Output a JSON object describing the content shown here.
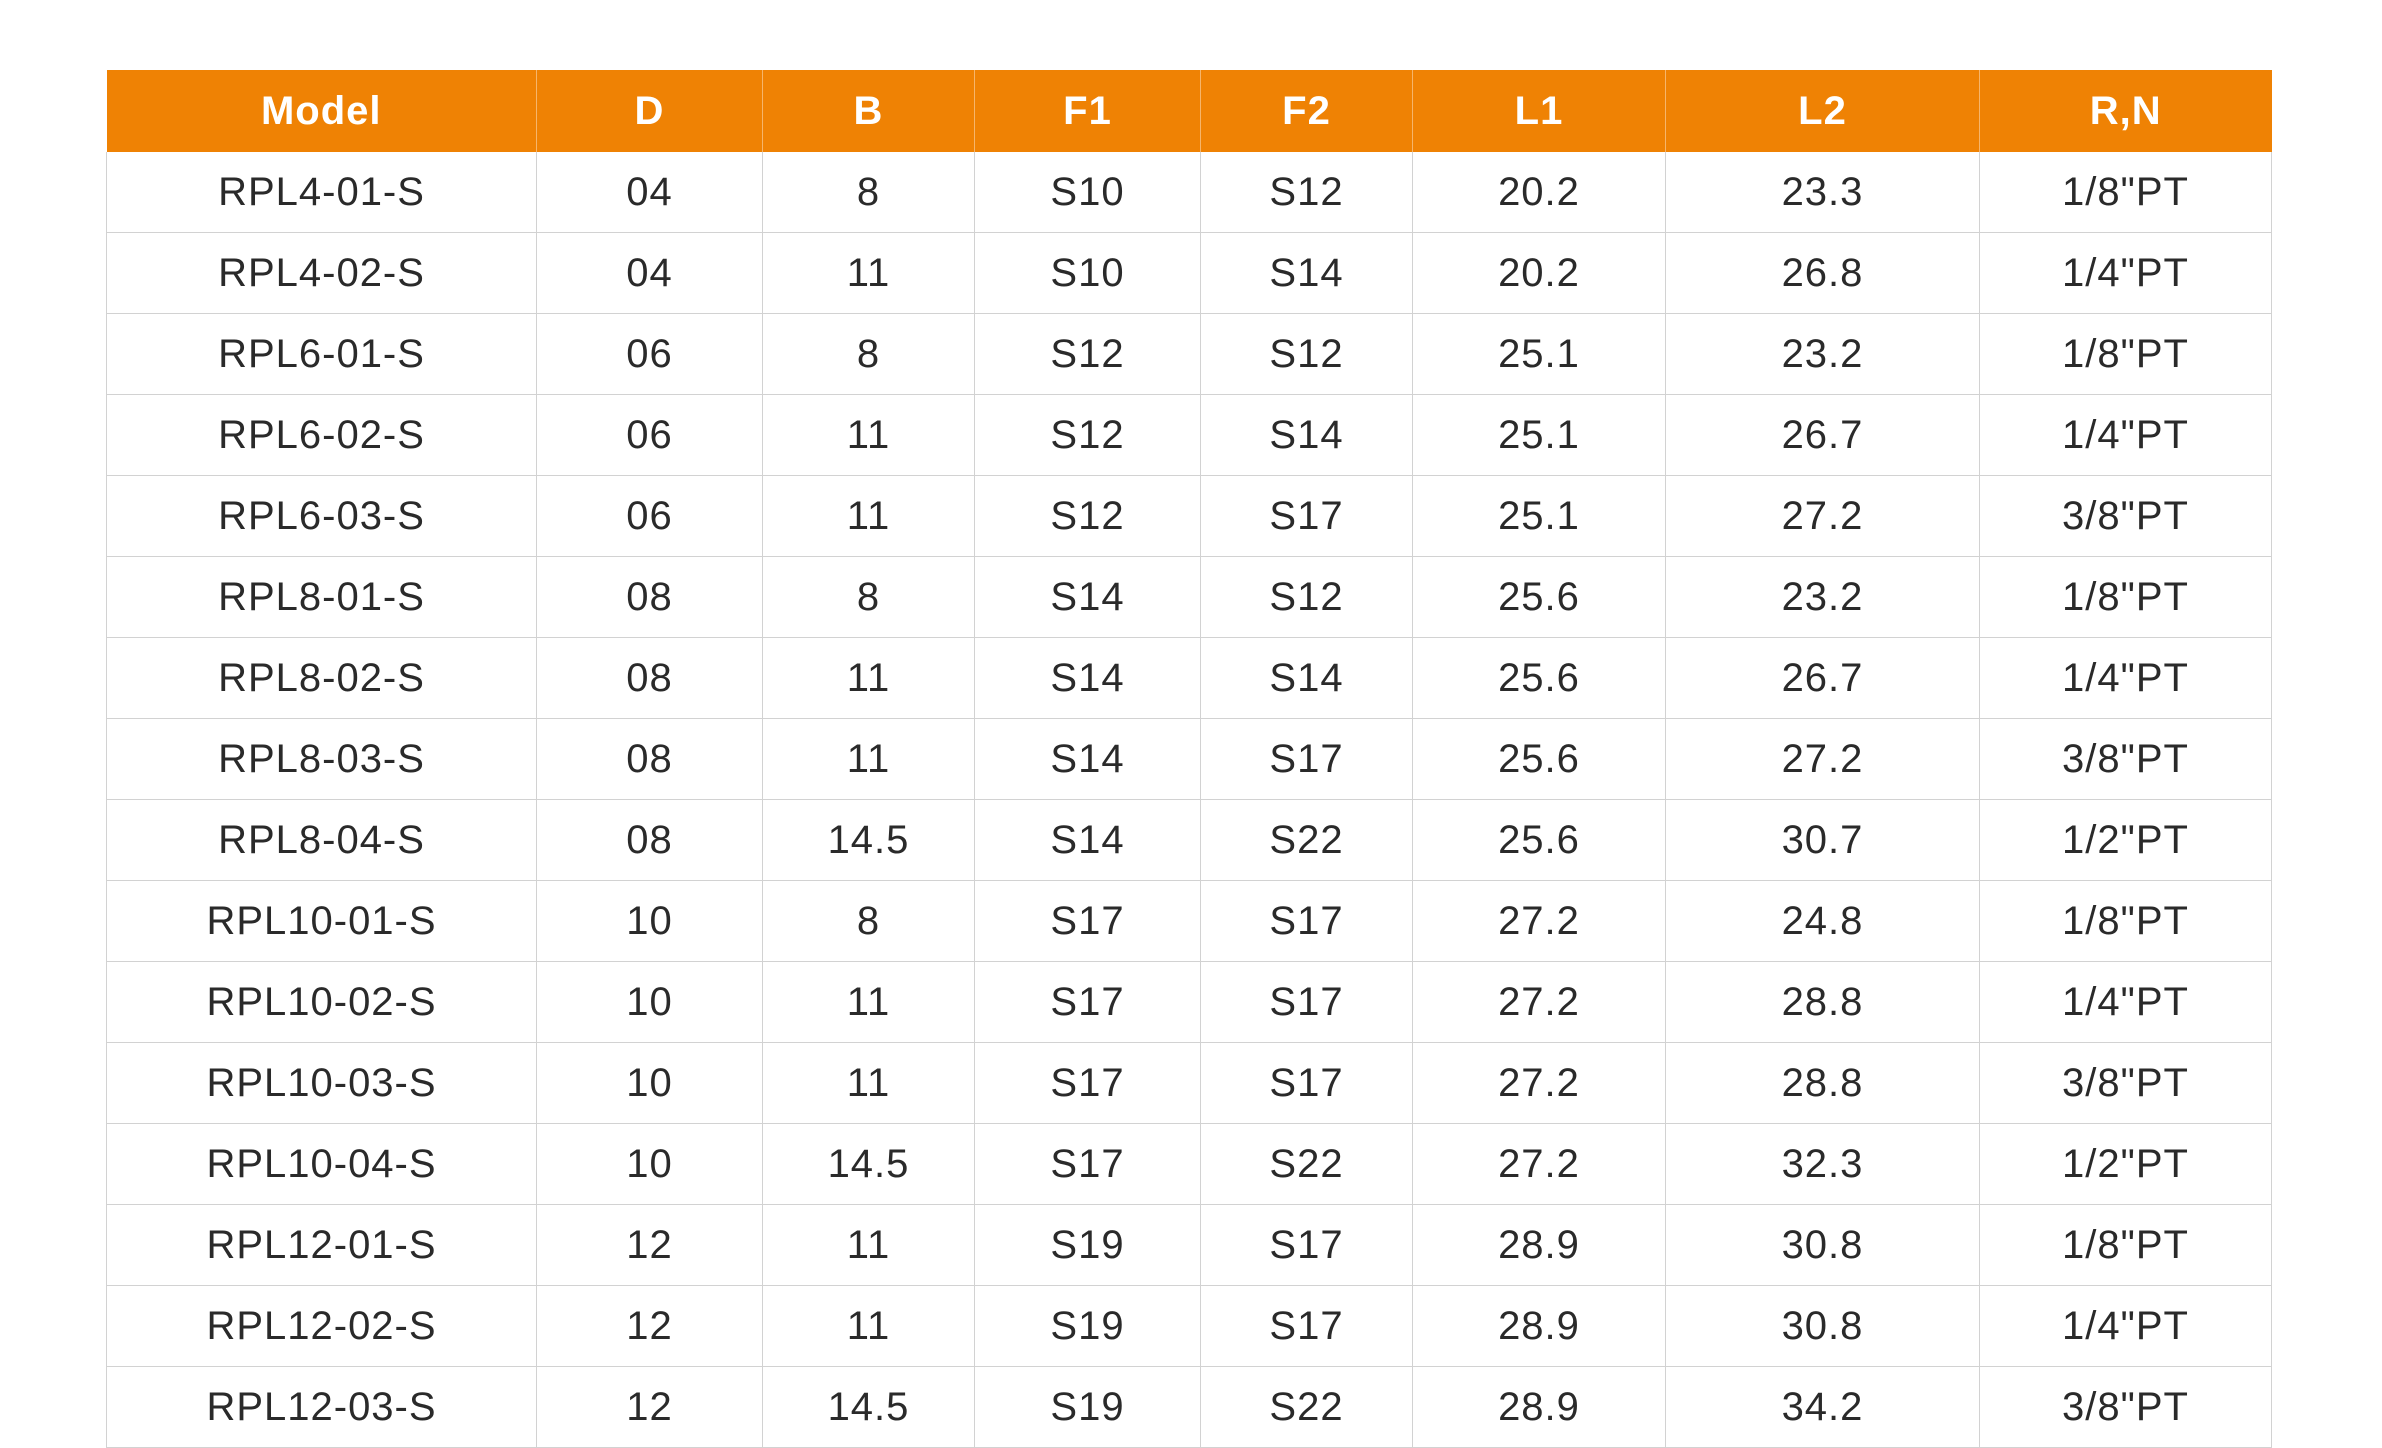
{
  "table": {
    "headers": [
      "Model",
      "D",
      "B",
      "F1",
      "F2",
      "L1",
      "L2",
      "R,N"
    ],
    "rows": [
      [
        "RPL4-01-S",
        "04",
        "8",
        "S10",
        "S12",
        "20.2",
        "23.3",
        "1/8\"PT"
      ],
      [
        "RPL4-02-S",
        "04",
        "11",
        "S10",
        "S14",
        "20.2",
        "26.8",
        "1/4\"PT"
      ],
      [
        "RPL6-01-S",
        "06",
        "8",
        "S12",
        "S12",
        "25.1",
        "23.2",
        "1/8\"PT"
      ],
      [
        "RPL6-02-S",
        "06",
        "11",
        "S12",
        "S14",
        "25.1",
        "26.7",
        "1/4\"PT"
      ],
      [
        "RPL6-03-S",
        "06",
        "11",
        "S12",
        "S17",
        "25.1",
        "27.2",
        "3/8\"PT"
      ],
      [
        "RPL8-01-S",
        "08",
        "8",
        "S14",
        "S12",
        "25.6",
        "23.2",
        "1/8\"PT"
      ],
      [
        "RPL8-02-S",
        "08",
        "11",
        "S14",
        "S14",
        "25.6",
        "26.7",
        "1/4\"PT"
      ],
      [
        "RPL8-03-S",
        "08",
        "11",
        "S14",
        "S17",
        "25.6",
        "27.2",
        "3/8\"PT"
      ],
      [
        "RPL8-04-S",
        "08",
        "14.5",
        "S14",
        "S22",
        "25.6",
        "30.7",
        "1/2\"PT"
      ],
      [
        "RPL10-01-S",
        "10",
        "8",
        "S17",
        "S17",
        "27.2",
        "24.8",
        "1/8\"PT"
      ],
      [
        "RPL10-02-S",
        "10",
        "11",
        "S17",
        "S17",
        "27.2",
        "28.8",
        "1/4\"PT"
      ],
      [
        "RPL10-03-S",
        "10",
        "11",
        "S17",
        "S17",
        "27.2",
        "28.8",
        "3/8\"PT"
      ],
      [
        "RPL10-04-S",
        "10",
        "14.5",
        "S17",
        "S22",
        "27.2",
        "32.3",
        "1/2\"PT"
      ],
      [
        "RPL12-01-S",
        "12",
        "11",
        "S19",
        "S17",
        "28.9",
        "30.8",
        "1/8\"PT"
      ],
      [
        "RPL12-02-S",
        "12",
        "11",
        "S19",
        "S17",
        "28.9",
        "30.8",
        "1/4\"PT"
      ],
      [
        "RPL12-03-S",
        "12",
        "14.5",
        "S19",
        "S22",
        "28.9",
        "34.2",
        "3/8\"PT"
      ]
    ]
  },
  "colors": {
    "header_bg": "#ef8204",
    "header_text": "#ffffff",
    "cell_text": "#2a2a2a",
    "grid": "#d2d2d2"
  }
}
